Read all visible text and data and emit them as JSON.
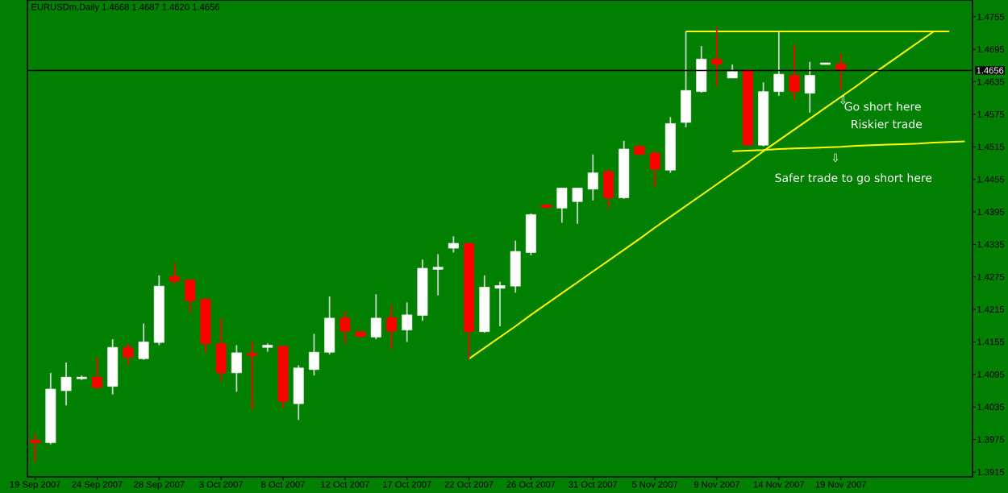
{
  "chart_data": {
    "type": "candlestick",
    "title": "EURUSDm,Daily  1.4668 1.4687 1.4620 1.4656",
    "categories": [
      "19 Sep 2007",
      null,
      null,
      null,
      "24 Sep 2007",
      null,
      null,
      null,
      "28 Sep 2007",
      null,
      null,
      null,
      "3 Oct 2007",
      null,
      null,
      null,
      "8 Oct 2007",
      null,
      null,
      null,
      "12 Oct 2007",
      null,
      null,
      null,
      "17 Oct 2007",
      null,
      null,
      null,
      "22 Oct 2007",
      null,
      null,
      null,
      "26 Oct 2007",
      null,
      null,
      null,
      "31 Oct 2007",
      null,
      null,
      null,
      "5 Nov 2007",
      null,
      null,
      null,
      "9 Nov 2007",
      null,
      null,
      null,
      "14 Nov 2007",
      null,
      null,
      null,
      "19 Nov 2007",
      null,
      null,
      null,
      null,
      null,
      null,
      null,
      null
    ],
    "ohlc": [
      [
        1.3974,
        1.3984,
        1.3934,
        1.3969
      ],
      [
        1.3969,
        1.4098,
        1.3966,
        1.4068
      ],
      [
        1.4065,
        1.4117,
        1.4038,
        1.409
      ],
      [
        1.4087,
        1.4093,
        1.4085,
        1.409
      ],
      [
        1.409,
        1.4127,
        1.4068,
        1.4071
      ],
      [
        1.4073,
        1.416,
        1.4058,
        1.4145
      ],
      [
        1.4145,
        1.4152,
        1.4112,
        1.4127
      ],
      [
        1.4124,
        1.4189,
        1.4122,
        1.4155
      ],
      [
        1.4154,
        1.4278,
        1.4149,
        1.4258
      ],
      [
        1.4276,
        1.43,
        1.4261,
        1.4267
      ],
      [
        1.4269,
        1.4271,
        1.4209,
        1.4231
      ],
      [
        1.4234,
        1.4236,
        1.4135,
        1.4152
      ],
      [
        1.4152,
        1.4199,
        1.4083,
        1.4098
      ],
      [
        1.4098,
        1.4149,
        1.4063,
        1.4135
      ],
      [
        1.4134,
        1.4155,
        1.403,
        1.413
      ],
      [
        1.4145,
        1.4152,
        1.4137,
        1.4149
      ],
      [
        1.4147,
        1.4147,
        1.4033,
        1.4045
      ],
      [
        1.4041,
        1.4112,
        1.4011,
        1.4107
      ],
      [
        1.4104,
        1.417,
        1.4093,
        1.4136
      ],
      [
        1.4136,
        1.4239,
        1.4132,
        1.4199
      ],
      [
        1.4199,
        1.4211,
        1.4152,
        1.4175
      ],
      [
        1.4174,
        1.4174,
        1.4164,
        1.4165
      ],
      [
        1.4164,
        1.4243,
        1.416,
        1.4199
      ],
      [
        1.42,
        1.4223,
        1.4142,
        1.4175
      ],
      [
        1.4177,
        1.4228,
        1.4155,
        1.4205
      ],
      [
        1.4204,
        1.4307,
        1.4194,
        1.4291
      ],
      [
        1.4289,
        1.4317,
        1.4241,
        1.4293
      ],
      [
        1.4328,
        1.435,
        1.432,
        1.4337
      ],
      [
        1.4337,
        1.4337,
        1.4124,
        1.4174
      ],
      [
        1.4174,
        1.4278,
        1.4172,
        1.4256
      ],
      [
        1.4254,
        1.4266,
        1.4184,
        1.4259
      ],
      [
        1.4258,
        1.4342,
        1.4246,
        1.4322
      ],
      [
        1.432,
        1.4392,
        1.4315,
        1.439
      ],
      [
        1.4408,
        1.4408,
        1.4403,
        1.4403
      ],
      [
        1.4402,
        1.4439,
        1.4375,
        1.4439
      ],
      [
        1.4414,
        1.4439,
        1.4373,
        1.4439
      ],
      [
        1.4437,
        1.4501,
        1.4416,
        1.4467
      ],
      [
        1.4469,
        1.4474,
        1.4402,
        1.4421
      ],
      [
        1.4421,
        1.4526,
        1.4419,
        1.4511
      ],
      [
        1.4516,
        1.4518,
        1.45,
        1.4501
      ],
      [
        1.4503,
        1.4508,
        1.4441,
        1.4474
      ],
      [
        1.4472,
        1.457,
        1.4467,
        1.4558
      ],
      [
        1.456,
        1.4728,
        1.4551,
        1.4619
      ],
      [
        1.4617,
        1.4701,
        1.4615,
        1.4677
      ],
      [
        1.4677,
        1.4736,
        1.4627,
        1.4667
      ],
      [
        1.4642,
        1.4667,
        1.4642,
        1.4654
      ],
      [
        1.4657,
        1.4657,
        1.4518,
        1.4518
      ],
      [
        1.4518,
        1.4634,
        1.4516,
        1.4617
      ],
      [
        1.4617,
        1.4728,
        1.4609,
        1.4649
      ],
      [
        1.4647,
        1.4703,
        1.4602,
        1.4617
      ],
      [
        1.4614,
        1.4672,
        1.4578,
        1.4647
      ],
      [
        1.4667,
        1.467,
        1.4667,
        1.467
      ],
      [
        1.4668,
        1.4687,
        1.462,
        1.4656
      ],
      null,
      null,
      null,
      null,
      null,
      null,
      null,
      null
    ],
    "ylim": [
      1.3906,
      1.4786
    ],
    "yticks": [
      1.3915,
      1.3975,
      1.4035,
      1.4095,
      1.4155,
      1.4215,
      1.4275,
      1.4335,
      1.4395,
      1.4455,
      1.4515,
      1.4575,
      1.4635,
      1.4695,
      1.4755
    ],
    "series": [
      {
        "type": "line",
        "color": "#ffff00",
        "values": [
          null,
          null,
          null,
          null,
          null,
          null,
          null,
          null,
          null,
          null,
          null,
          null,
          null,
          null,
          null,
          null,
          null,
          null,
          null,
          null,
          null,
          null,
          null,
          null,
          null,
          null,
          null,
          null,
          1.4124,
          1.4144,
          1.4164,
          1.4184,
          1.4205,
          1.4225,
          1.4245,
          1.4265,
          1.4285,
          1.4305,
          1.4325,
          1.4345,
          1.4366,
          1.4386,
          1.4406,
          1.4426,
          1.4446,
          1.4466,
          1.4486,
          1.4507,
          1.4527,
          1.4547,
          1.4567,
          1.4587,
          1.4607,
          1.4627,
          1.4648,
          1.4668,
          1.4688,
          1.4708,
          1.4728,
          null,
          null
        ]
      },
      {
        "type": "line",
        "color": "#ffff00",
        "values": [
          null,
          null,
          null,
          null,
          null,
          null,
          null,
          null,
          null,
          null,
          null,
          null,
          null,
          null,
          null,
          null,
          null,
          null,
          null,
          null,
          null,
          null,
          null,
          null,
          null,
          null,
          null,
          null,
          null,
          null,
          null,
          null,
          null,
          null,
          null,
          null,
          null,
          null,
          null,
          null,
          null,
          null,
          1.4728,
          1.4728,
          1.4728,
          1.4728,
          1.4728,
          1.4728,
          1.4728,
          1.4728,
          1.4728,
          1.4728,
          1.4728,
          1.4728,
          1.4728,
          1.4728,
          1.4728,
          1.4728,
          1.4728,
          1.4728,
          null
        ]
      },
      {
        "type": "line",
        "color": "#ffff00",
        "values": [
          null,
          null,
          null,
          null,
          null,
          null,
          null,
          null,
          null,
          null,
          null,
          null,
          null,
          null,
          null,
          null,
          null,
          null,
          null,
          null,
          null,
          null,
          null,
          null,
          null,
          null,
          null,
          null,
          null,
          null,
          null,
          null,
          null,
          null,
          null,
          null,
          null,
          null,
          null,
          null,
          null,
          null,
          null,
          null,
          null,
          1.4507,
          1.4508,
          1.4509,
          1.4511,
          1.4512,
          1.4513,
          1.4514,
          1.4515,
          1.4517,
          1.4518,
          1.4519,
          1.452,
          1.4521,
          1.4523,
          1.4524,
          1.4525
        ]
      }
    ],
    "ref_lines": [
      {
        "axis": "y",
        "value": 1.4656,
        "label": "1.4656",
        "color": "#000000"
      }
    ],
    "annotations": [
      "⇩",
      "Go short here",
      "Riskier trade",
      "⇩",
      "Safer trade to go short here"
    ]
  }
}
